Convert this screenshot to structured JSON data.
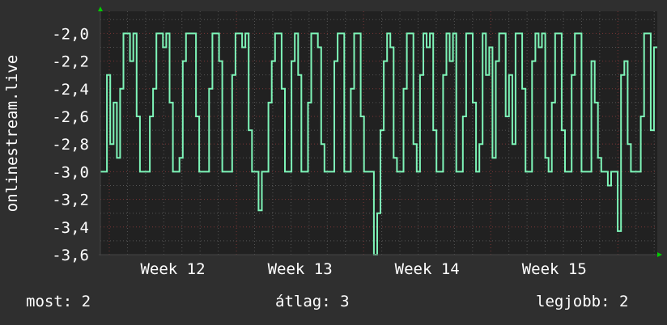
{
  "chart_data": {
    "type": "line",
    "title": "",
    "ylabel": "onlinestream.live",
    "xlabel": "",
    "ylim": [
      -3.6,
      -1.84
    ],
    "xlim_weeks": [
      11.93,
      16.31
    ],
    "yticks": [
      -2.0,
      -2.2,
      -2.4,
      -2.6,
      -2.8,
      -3.0,
      -3.2,
      -3.4,
      -3.6
    ],
    "ytick_labels": [
      "-2,0",
      "-2,2",
      "-2,4",
      "-2,6",
      "-2,8",
      "-3,0",
      "-3,2",
      "-3,4",
      "-3,6"
    ],
    "xticks": [
      12,
      13,
      14,
      15
    ],
    "xtick_labels": [
      "Week 12",
      "Week 13",
      "Week 14",
      "Week 15"
    ],
    "grid": true,
    "colors": {
      "line": "#7ef5b8",
      "plot_bg": "#212121",
      "major_grid": "#7a3535",
      "minor_grid": "#555555",
      "axis_arrow": "#00cc00"
    },
    "series": [
      {
        "values": [
          -3,
          -3,
          -2.3,
          -2.8,
          -2.5,
          -2.9,
          -2.4,
          -2,
          -2,
          -2.2,
          -2,
          -2.6,
          -3,
          -3,
          -3,
          -2.6,
          -2.4,
          -2,
          -2,
          -2.1,
          -2,
          -2.5,
          -3,
          -3,
          -2.9,
          -2.2,
          -2,
          -2,
          -2,
          -2.6,
          -3,
          -3,
          -3,
          -2.4,
          -2,
          -2,
          -2.2,
          -3,
          -3,
          -3,
          -2.3,
          -2,
          -2,
          -2.1,
          -2,
          -2.7,
          -3,
          -3,
          -3.28,
          -3,
          -3,
          -2.5,
          -2.2,
          -2,
          -2,
          -2.4,
          -3,
          -3,
          -2.2,
          -2,
          -2.3,
          -3,
          -3,
          -2.5,
          -2,
          -2,
          -2.1,
          -2.8,
          -3,
          -3,
          -3,
          -2.2,
          -2,
          -2,
          -3,
          -3,
          -2.4,
          -2,
          -2,
          -2.6,
          -3,
          -3,
          -3,
          -3.6,
          -3.3,
          -2.7,
          -2.2,
          -2,
          -2.1,
          -2.9,
          -3,
          -3,
          -2.4,
          -2,
          -2,
          -2.8,
          -3,
          -2.3,
          -2,
          -2.1,
          -2,
          -2.7,
          -3,
          -3,
          -2.3,
          -2,
          -2.2,
          -2,
          -3,
          -3,
          -2.6,
          -2,
          -2,
          -2.5,
          -3,
          -2.8,
          -2,
          -2.3,
          -2.1,
          -2.9,
          -2.2,
          -2,
          -2,
          -2.6,
          -2.3,
          -2.8,
          -2,
          -2,
          -2.4,
          -3,
          -3,
          -2.2,
          -2,
          -2.1,
          -2,
          -2.9,
          -3,
          -2.5,
          -2,
          -2,
          -2.7,
          -3,
          -3,
          -2.3,
          -2,
          -2,
          -3,
          -3,
          -3,
          -2.2,
          -2.5,
          -2.9,
          -3,
          -3,
          -3.1,
          -3,
          -3,
          -3.43,
          -2.3,
          -2.2,
          -2.8,
          -3,
          -3,
          -3,
          -2.6,
          -2,
          -2,
          -2.7,
          -2.1
        ]
      }
    ]
  },
  "legend": {
    "current": "most: 2",
    "average": "átlag: 3",
    "best": "legjobb: 2"
  }
}
